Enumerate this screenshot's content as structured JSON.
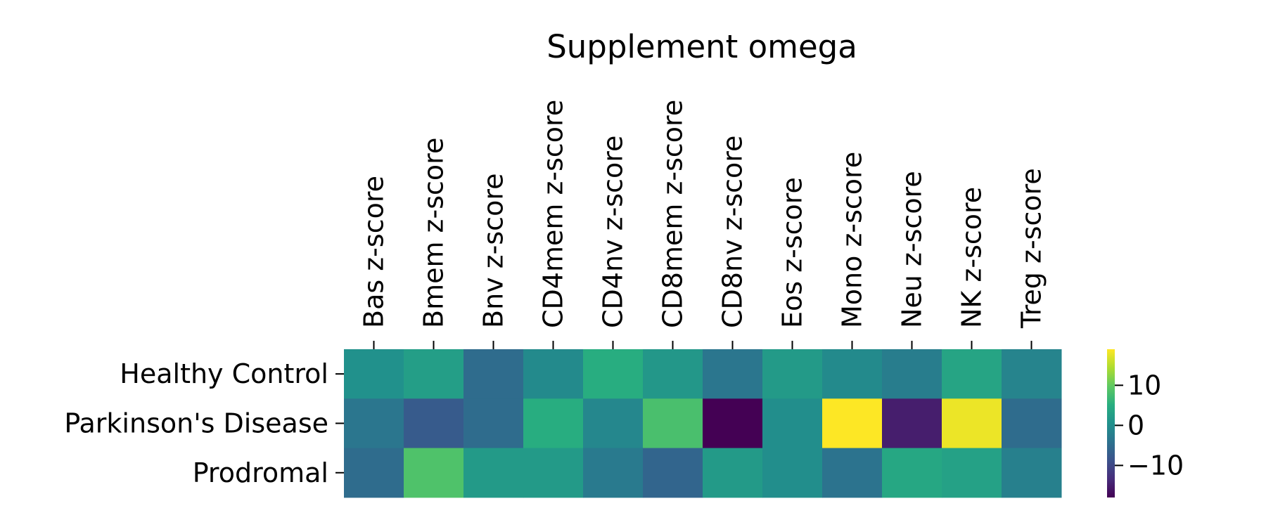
{
  "chart_data": {
    "type": "heatmap",
    "title": "Supplement omega",
    "xlabel": "",
    "ylabel": "",
    "columns": [
      "Bas z-score",
      "Bmem z-score",
      "Bnv z-score",
      "CD4mem z-score",
      "CD4nv z-score",
      "CD8mem z-score",
      "CD8nv z-score",
      "Eos z-score",
      "Mono z-score",
      "Neu z-score",
      "NK z-score",
      "Treg z-score"
    ],
    "rows": [
      "Healthy Control",
      "Parkinson's Disease",
      "Prodromal"
    ],
    "values": [
      [
        0.5,
        2.5,
        -5,
        -0.5,
        5,
        1.5,
        -3.5,
        2,
        -0.5,
        -2.5,
        3.5,
        -1.5
      ],
      [
        -3.5,
        -7.5,
        -5,
        5,
        -1,
        8,
        -18,
        0,
        19,
        -15,
        18,
        -5
      ],
      [
        -5,
        8.5,
        2,
        2,
        -3,
        -6,
        2,
        0,
        -4,
        4,
        3,
        -2
      ]
    ],
    "colormap": "viridis",
    "colorbar": {
      "range": [
        -18,
        19
      ],
      "ticks": [
        10,
        0,
        -10
      ],
      "tick_labels": [
        "10",
        "0",
        "−10"
      ]
    },
    "x_ticks_position": "top",
    "grid": false
  }
}
